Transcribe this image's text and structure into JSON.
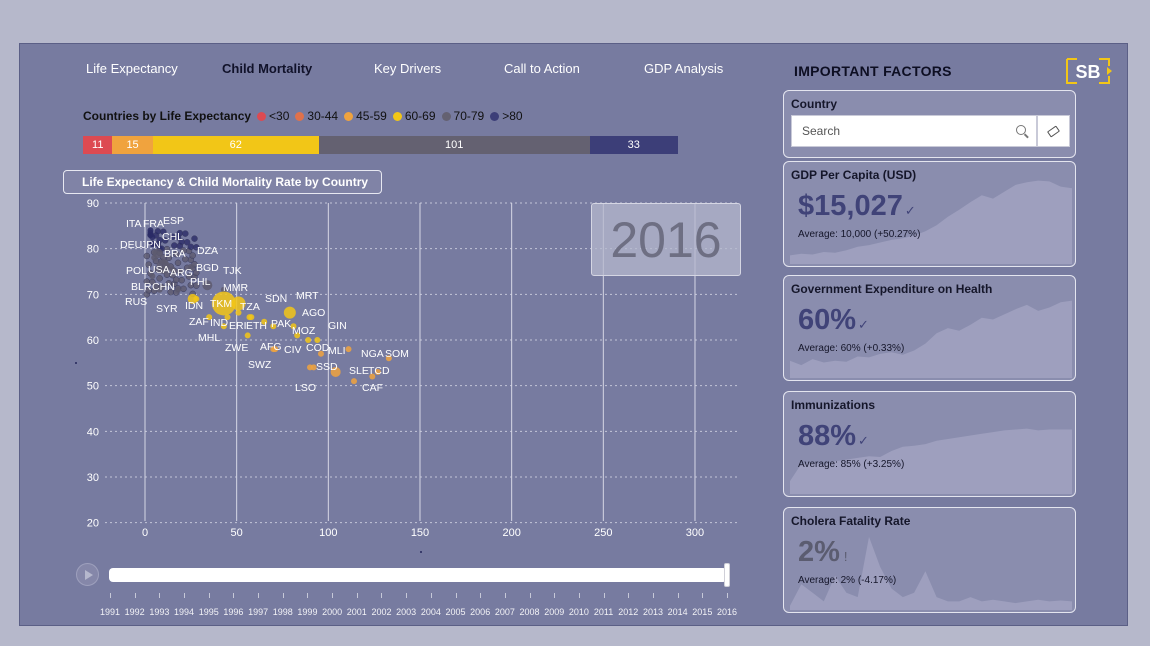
{
  "tabs": [
    {
      "label": "Life Expectancy"
    },
    {
      "label": "Child Mortality"
    },
    {
      "label": "Key Drivers"
    },
    {
      "label": "Call to Action"
    },
    {
      "label": "GDP Analysis"
    }
  ],
  "legend": {
    "title": "Countries by Life Expectancy",
    "items": [
      {
        "label": "<30",
        "color": "#dd4a52"
      },
      {
        "label": "30-44",
        "color": "#e0714b"
      },
      {
        "label": "45-59",
        "color": "#f0a33e"
      },
      {
        "label": "60-69",
        "color": "#f2c617"
      },
      {
        "label": "70-79",
        "color": "#646171"
      },
      {
        "label": ">80",
        "color": "#3c3e78"
      }
    ]
  },
  "stacked_bar": [
    {
      "value": 11,
      "label": "11",
      "color": "#dd4a52"
    },
    {
      "value": 15,
      "label": "15",
      "color": "#f0a33e"
    },
    {
      "value": 62,
      "label": "62",
      "color": "#f2c617"
    },
    {
      "value": 101,
      "label": "101",
      "color": "#646171"
    },
    {
      "value": 33,
      "label": "33",
      "color": "#3c3e78"
    }
  ],
  "chart_title": "Life Expectancy & Child Mortality Rate by Country",
  "year_display": "2016",
  "chart_data": {
    "type": "scatter",
    "title": "Life Expectancy & Child Mortality Rate by Country",
    "xlim": [
      -15,
      320
    ],
    "ylim": [
      20,
      90
    ],
    "xticks": [
      0,
      50,
      100,
      150,
      200,
      250,
      300
    ],
    "yticks": [
      20,
      30,
      40,
      50,
      60,
      70,
      80,
      90
    ],
    "xtick_labels": [
      "0",
      "50",
      "100",
      "150",
      "200",
      "250",
      "300"
    ],
    "ytick_labels": [
      "20",
      "30",
      "40",
      "50",
      "60",
      "70",
      "80",
      "90"
    ],
    "labeled_points": [
      {
        "label": "ITA",
        "x": 3,
        "y": 83
      },
      {
        "label": "FRA",
        "x": 4,
        "y": 82.5
      },
      {
        "label": "ESP",
        "x": 3,
        "y": 83.5
      },
      {
        "label": "CHL",
        "x": 8,
        "y": 80
      },
      {
        "label": "DEU",
        "x": 4,
        "y": 81
      },
      {
        "label": "JPN",
        "x": 3,
        "y": 84
      },
      {
        "label": "BRA",
        "x": 15,
        "y": 75.5
      },
      {
        "label": "DZA",
        "x": 25,
        "y": 76
      },
      {
        "label": "POL",
        "x": 5,
        "y": 78
      },
      {
        "label": "USA",
        "x": 7,
        "y": 79
      },
      {
        "label": "ARG",
        "x": 11,
        "y": 77
      },
      {
        "label": "BGD",
        "x": 34,
        "y": 72
      },
      {
        "label": "TJK",
        "x": 43,
        "y": 71
      },
      {
        "label": "BLR",
        "x": 4,
        "y": 74
      },
      {
        "label": "CHN",
        "x": 10,
        "y": 76
      },
      {
        "label": "PHL",
        "x": 28,
        "y": 69
      },
      {
        "label": "MMR",
        "x": 51,
        "y": 66
      },
      {
        "label": "RUS",
        "x": 8,
        "y": 71
      },
      {
        "label": "SYR",
        "x": 18,
        "y": 71
      },
      {
        "label": "IDN",
        "x": 26,
        "y": 69
      },
      {
        "label": "TKM",
        "x": 51,
        "y": 68
      },
      {
        "label": "TZA",
        "x": 57,
        "y": 65
      },
      {
        "label": "SDN",
        "x": 65,
        "y": 64
      },
      {
        "label": "MRT",
        "x": 81,
        "y": 63
      },
      {
        "label": "AGO",
        "x": 83,
        "y": 61
      },
      {
        "label": "ZAF",
        "x": 43,
        "y": 63
      },
      {
        "label": "IND",
        "x": 43,
        "y": 68
      },
      {
        "label": "ERI",
        "x": 45,
        "y": 65
      },
      {
        "label": "ETH",
        "x": 58,
        "y": 65
      },
      {
        "label": "PAK",
        "x": 79,
        "y": 66
      },
      {
        "label": "GIN",
        "x": 89,
        "y": 60
      },
      {
        "label": "MHL",
        "x": 35,
        "y": 65
      },
      {
        "label": "MOZ",
        "x": 71,
        "y": 58
      },
      {
        "label": "ZWE",
        "x": 56,
        "y": 61
      },
      {
        "label": "AFG",
        "x": 70,
        "y": 63
      },
      {
        "label": "CIV",
        "x": 92,
        "y": 54
      },
      {
        "label": "COD",
        "x": 94,
        "y": 60
      },
      {
        "label": "MLI",
        "x": 111,
        "y": 58
      },
      {
        "label": "NGA",
        "x": 104,
        "y": 53
      },
      {
        "label": "SOM",
        "x": 133,
        "y": 56
      },
      {
        "label": "SWZ",
        "x": 70,
        "y": 58
      },
      {
        "label": "SSD",
        "x": 96,
        "y": 57
      },
      {
        "label": "SLE",
        "x": 114,
        "y": 51
      },
      {
        "label": "TCD",
        "x": 127,
        "y": 53
      },
      {
        "label": "LSO",
        "x": 90,
        "y": 54
      },
      {
        "label": "CAF",
        "x": 124,
        "y": 52
      }
    ]
  },
  "timeline": {
    "years": [
      "1991",
      "1992",
      "1993",
      "1994",
      "1995",
      "1996",
      "1997",
      "1998",
      "1999",
      "2000",
      "2001",
      "2002",
      "2003",
      "2004",
      "2005",
      "2006",
      "2007",
      "2008",
      "2009",
      "2010",
      "2011",
      "2012",
      "2013",
      "2014",
      "2015",
      "2016"
    ],
    "current": "2016",
    "progress": 1.0
  },
  "important_factors": {
    "title": "IMPORTANT FACTORS",
    "logo_text": "SB",
    "country": {
      "title": "Country",
      "placeholder": "Search"
    },
    "kpis": [
      {
        "title": "GDP Per Capita (USD)",
        "value": "$15,027",
        "avg": "Average: 10,000 (+50.27%)",
        "mark": "✓",
        "spark": [
          0.1,
          0.12,
          0.11,
          0.14,
          0.13,
          0.16,
          0.2,
          0.22,
          0.25,
          0.28,
          0.3,
          0.33,
          0.38,
          0.45,
          0.55,
          0.63,
          0.72,
          0.8,
          0.76,
          0.84,
          0.92,
          0.95,
          0.97,
          0.96,
          0.9,
          0.88
        ]
      },
      {
        "title": "Government Expenditure on Health",
        "value": "60%",
        "avg": "Average: 60% (+0.33%)",
        "mark": "✓",
        "spark": [
          0.2,
          0.15,
          0.22,
          0.18,
          0.2,
          0.19,
          0.25,
          0.24,
          0.28,
          0.3,
          0.27,
          0.32,
          0.4,
          0.52,
          0.58,
          0.55,
          0.62,
          0.7,
          0.68,
          0.74,
          0.8,
          0.85,
          0.78,
          0.82,
          0.88,
          0.9
        ]
      },
      {
        "title": "Immunizations",
        "value": "88%",
        "avg": "Average: 85% (+3.25%)",
        "mark": "✓",
        "spark": [
          0.15,
          0.35,
          0.36,
          0.34,
          0.38,
          0.4,
          0.42,
          0.44,
          0.43,
          0.5,
          0.55,
          0.56,
          0.58,
          0.62,
          0.64,
          0.66,
          0.68,
          0.7,
          0.72,
          0.74,
          0.75,
          0.76,
          0.74,
          0.75,
          0.75,
          0.75
        ]
      },
      {
        "title": "Cholera Fatality Rate",
        "value": "2%",
        "avg": "Average: 2% (-4.17%)",
        "mark": "!",
        "spark": [
          0.05,
          0.3,
          0.2,
          0.1,
          0.4,
          0.2,
          0.15,
          0.85,
          0.5,
          0.25,
          0.15,
          0.2,
          0.45,
          0.15,
          0.1,
          0.1,
          0.15,
          0.1,
          0.12,
          0.1,
          0.08,
          0.1,
          0.12,
          0.1,
          0.11,
          0.1
        ]
      }
    ]
  }
}
